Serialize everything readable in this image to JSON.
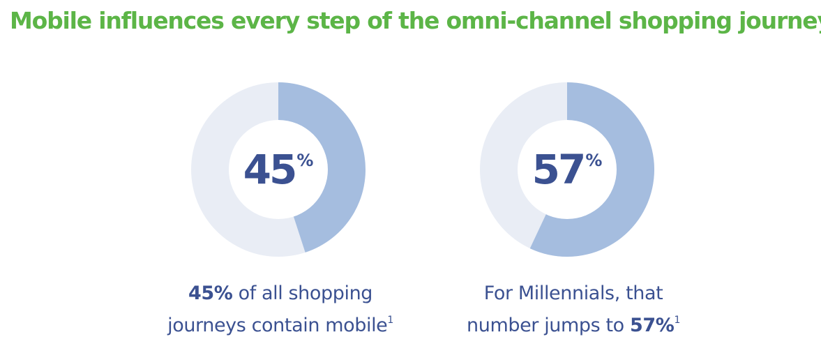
{
  "title": "Mobile influences every step of the omni-channel shopping journey...",
  "colors": {
    "title": "#5cb547",
    "value_text": "#3b5191",
    "caption_text": "#3b5191",
    "donut_fill": "#a5bddf",
    "donut_track": "#e9edf5",
    "donut_hole": "#ffffff"
  },
  "chart_data": [
    {
      "type": "pie",
      "style": "donut",
      "values": [
        45,
        55
      ],
      "value_label": "45",
      "percent_sign": "%",
      "caption": {
        "highlight": "45%",
        "line1_rest": "of all shopping",
        "line2": "journeys contain mobile",
        "footnote": "1"
      }
    },
    {
      "type": "pie",
      "style": "donut",
      "values": [
        57,
        43
      ],
      "value_label": "57",
      "percent_sign": "%",
      "caption": {
        "line1": "For Millennials, that",
        "line2_pre": "number jumps to",
        "highlight": "57%",
        "footnote": "1"
      }
    }
  ]
}
